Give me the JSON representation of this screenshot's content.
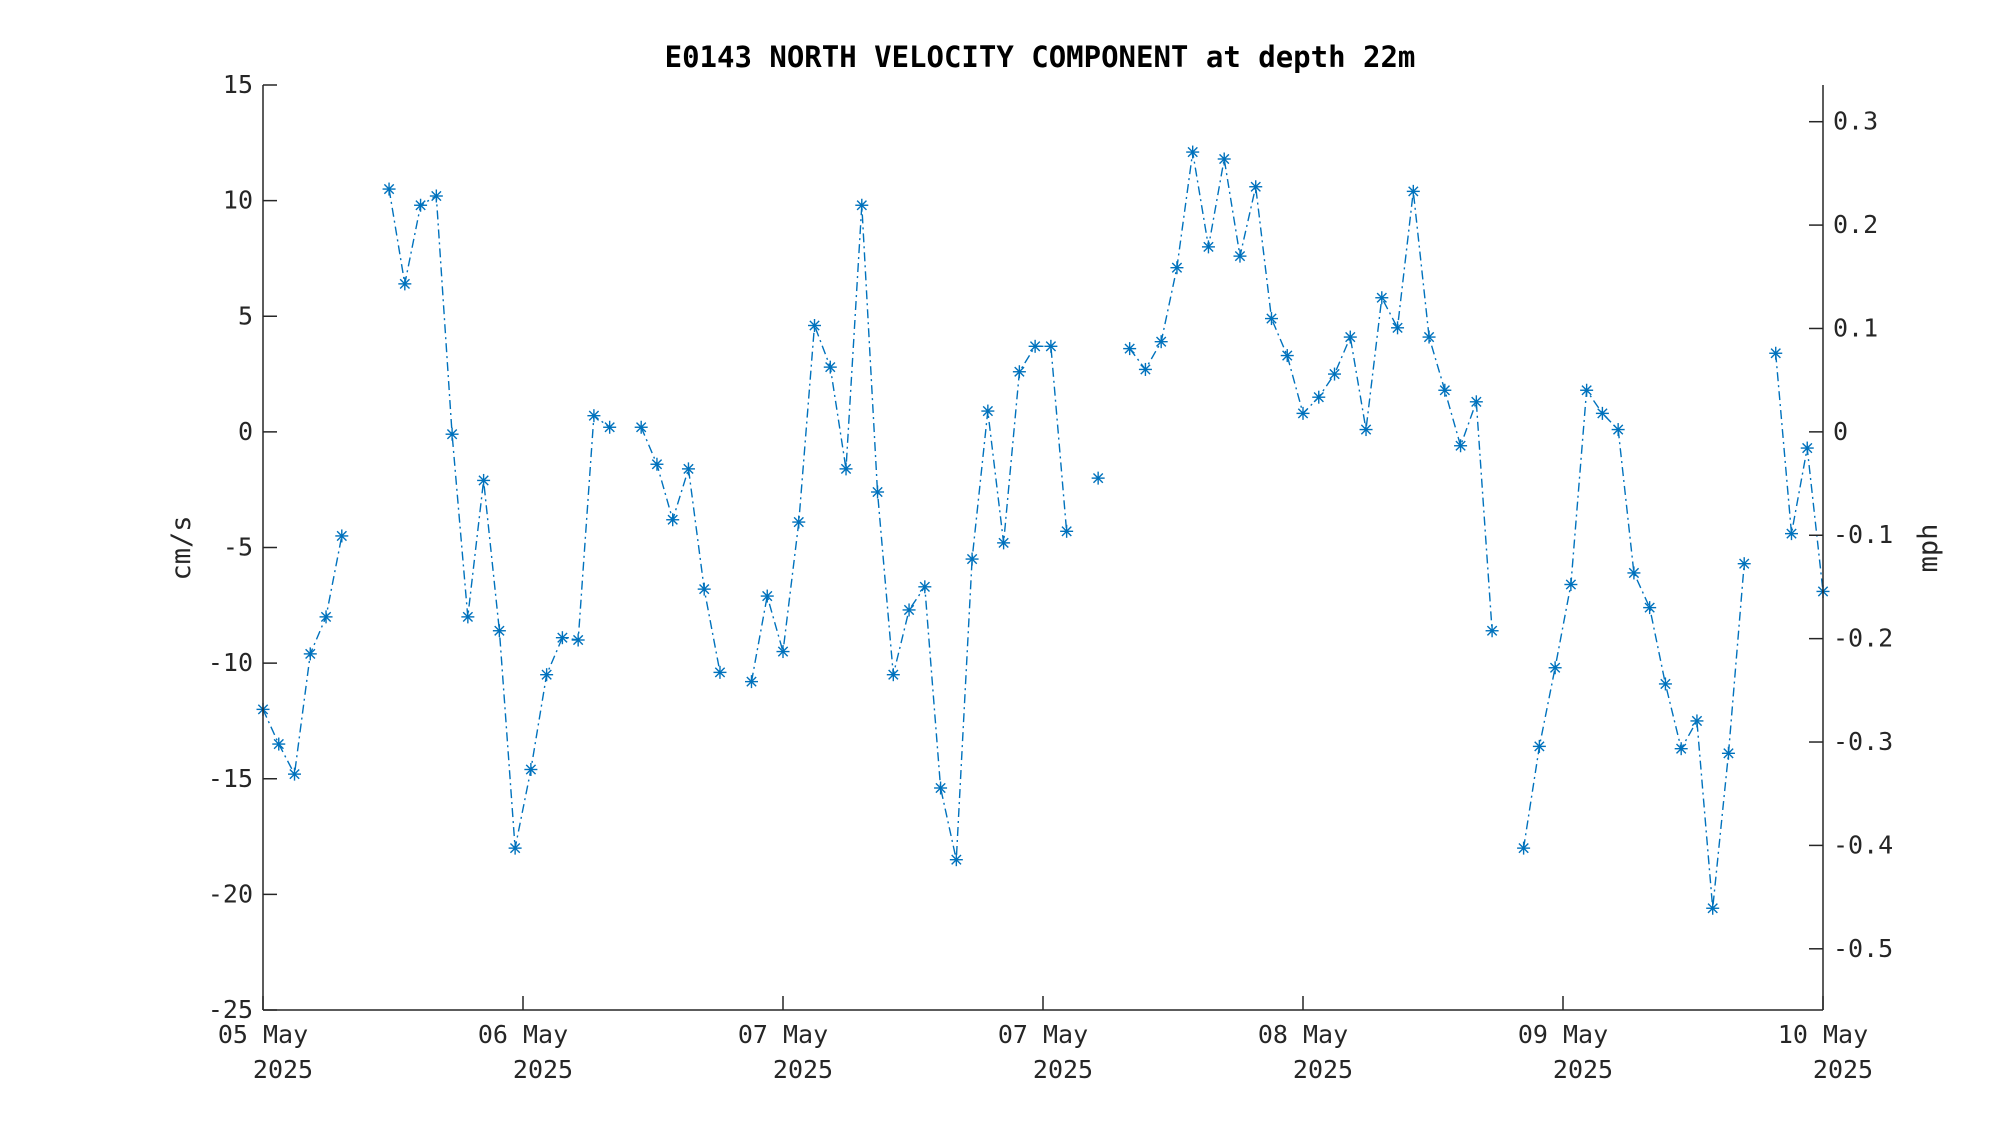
{
  "colors": {
    "series": "#0072bd",
    "axis": "#262626",
    "background": "#ffffff"
  },
  "chart_data": {
    "type": "line",
    "title": "E0143 NORTH VELOCITY COMPONENT at depth 22m",
    "ylabel": "cm/s",
    "ylabel_right": "mph",
    "marker": "asterisk",
    "line_style": "dash-dot",
    "grid": false,
    "ylim": [
      -25,
      15
    ],
    "ylim_right": [
      -0.5592,
      0.3355
    ],
    "yticks": [
      "15",
      "10",
      "5",
      "0",
      "-5",
      "-10",
      "-15",
      "-20",
      "-25"
    ],
    "yticks_right": [
      "0.3",
      "0.2",
      "0.1",
      "0",
      "-0.1",
      "-0.2",
      "-0.3",
      "-0.4",
      "-0.5"
    ],
    "xticks": [
      {
        "day": "05 May",
        "year": "2025"
      },
      {
        "day": "06 May",
        "year": "2025"
      },
      {
        "day": "07 May",
        "year": "2025"
      },
      {
        "day": "07 May",
        "year": "2025"
      },
      {
        "day": "08 May",
        "year": "2025"
      },
      {
        "day": "09 May",
        "year": "2025"
      },
      {
        "day": "10 May",
        "year": "2025"
      }
    ],
    "series": [
      {
        "values": [
          -12.0,
          -13.5,
          -14.8,
          -9.6,
          -8.0,
          -4.5,
          null,
          null,
          10.5,
          6.4,
          9.8,
          10.2,
          -0.1,
          -8.0,
          -2.1,
          -8.6,
          -18.0,
          -14.6,
          -10.5,
          -8.9,
          -9.0,
          0.7,
          0.2,
          null,
          0.2,
          -1.4,
          -3.8,
          -1.6,
          -6.8,
          -10.4,
          null,
          -10.8,
          -7.1,
          -9.5,
          -3.9,
          4.6,
          2.8,
          -1.6,
          9.8,
          -2.6,
          -10.5,
          -7.7,
          -6.7,
          -15.4,
          -18.5,
          -5.5,
          0.9,
          -4.8,
          2.6,
          3.7,
          3.7,
          -4.3,
          null,
          -2.0,
          null,
          3.6,
          2.7,
          3.9,
          7.1,
          12.1,
          8.0,
          11.8,
          7.6,
          10.6,
          4.9,
          3.3,
          0.8,
          1.5,
          2.5,
          4.1,
          0.1,
          5.8,
          4.5,
          10.4,
          4.1,
          1.8,
          -0.6,
          1.3,
          -8.6,
          null,
          -18.0,
          -13.6,
          -10.2,
          -6.6,
          1.8,
          0.8,
          0.1,
          -6.1,
          -7.6,
          -10.9,
          -13.7,
          -12.5,
          -20.6,
          -13.9,
          -5.7,
          null,
          3.4,
          -4.4,
          -0.7,
          -6.9
        ]
      }
    ]
  }
}
